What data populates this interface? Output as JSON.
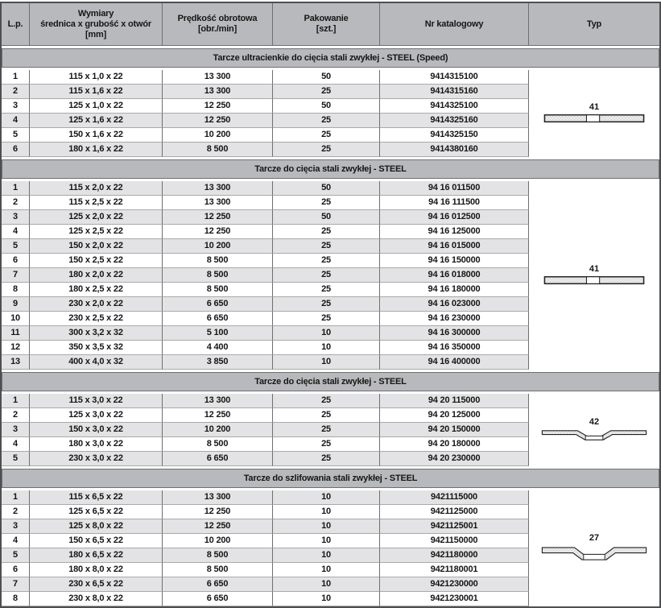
{
  "table": {
    "columns": [
      {
        "key": "lp",
        "lines": [
          "L.p."
        ]
      },
      {
        "key": "dim",
        "lines": [
          "Wymiary",
          "średnica x grubość x otwór",
          "[mm]"
        ]
      },
      {
        "key": "rpm",
        "lines": [
          "Prędkość obrotowa",
          "[obr./min]"
        ]
      },
      {
        "key": "pack",
        "lines": [
          "Pakowanie",
          "[szt.]"
        ]
      },
      {
        "key": "cat",
        "lines": [
          "Nr katalogowy"
        ]
      },
      {
        "key": "typ",
        "lines": [
          "Typ"
        ]
      }
    ],
    "sections": [
      {
        "title": "Tarcze ultracienkie do cięcia stali zwykłej - STEEL (Speed)",
        "type_label": "41",
        "disc": "flat41",
        "start_shaded": false,
        "rows": [
          {
            "lp": "1",
            "dim": "115 x 1,0 x 22",
            "rpm": "13 300",
            "pack": "50",
            "cat": "9414315100"
          },
          {
            "lp": "2",
            "dim": "115 x 1,6 x 22",
            "rpm": "13 300",
            "pack": "25",
            "cat": "9414315160"
          },
          {
            "lp": "3",
            "dim": "125 x 1,0 x 22",
            "rpm": "12 250",
            "pack": "50",
            "cat": "9414325100"
          },
          {
            "lp": "4",
            "dim": "125 x 1,6 x 22",
            "rpm": "12 250",
            "pack": "25",
            "cat": "9414325160"
          },
          {
            "lp": "5",
            "dim": "150 x 1,6 x 22",
            "rpm": "10 200",
            "pack": "25",
            "cat": "9414325150"
          },
          {
            "lp": "6",
            "dim": "180 x 1,6 x 22",
            "rpm": "8 500",
            "pack": "25",
            "cat": "9414380160"
          }
        ]
      },
      {
        "title": "Tarcze do cięcia stali zwykłej - STEEL",
        "type_label": "41",
        "disc": "flat41",
        "start_shaded": true,
        "rows": [
          {
            "lp": "1",
            "dim": "115 x 2,0 x 22",
            "rpm": "13 300",
            "pack": "50",
            "cat": "94 16 011500"
          },
          {
            "lp": "2",
            "dim": "115 x 2,5 x 22",
            "rpm": "13 300",
            "pack": "25",
            "cat": "94 16 111500"
          },
          {
            "lp": "3",
            "dim": "125 x 2,0 x 22",
            "rpm": "12 250",
            "pack": "50",
            "cat": "94 16 012500"
          },
          {
            "lp": "4",
            "dim": "125 x 2,5 x 22",
            "rpm": "12 250",
            "pack": "25",
            "cat": "94 16 125000"
          },
          {
            "lp": "5",
            "dim": "150 x 2,0 x 22",
            "rpm": "10 200",
            "pack": "25",
            "cat": "94 16 015000"
          },
          {
            "lp": "6",
            "dim": "150 x 2,5 x 22",
            "rpm": "8 500",
            "pack": "25",
            "cat": "94 16 150000"
          },
          {
            "lp": "7",
            "dim": "180 x 2,0 x 22",
            "rpm": "8 500",
            "pack": "25",
            "cat": "94 16 018000"
          },
          {
            "lp": "8",
            "dim": "180 x 2,5 x 22",
            "rpm": "8 500",
            "pack": "25",
            "cat": "94 16 180000"
          },
          {
            "lp": "9",
            "dim": "230 x 2,0 x 22",
            "rpm": "6 650",
            "pack": "25",
            "cat": "94 16 023000"
          },
          {
            "lp": "10",
            "dim": "230 x 2,5 x 22",
            "rpm": "6 650",
            "pack": "25",
            "cat": "94 16 230000"
          },
          {
            "lp": "11",
            "dim": "300 x 3,2 x 32",
            "rpm": "5 100",
            "pack": "10",
            "cat": "94 16 300000"
          },
          {
            "lp": "12",
            "dim": "350 x 3,5 x 32",
            "rpm": "4 400",
            "pack": "10",
            "cat": "94 16 350000"
          },
          {
            "lp": "13",
            "dim": "400 x 4,0 x 32",
            "rpm": "3 850",
            "pack": "10",
            "cat": "94 16 400000"
          }
        ]
      },
      {
        "title": "Tarcze do cięcia stali zwykłej  - STEEL",
        "type_label": "42",
        "disc": "dep42",
        "start_shaded": true,
        "rows": [
          {
            "lp": "1",
            "dim": "115 x 3,0 x 22",
            "rpm": "13 300",
            "pack": "25",
            "cat": "94 20 115000"
          },
          {
            "lp": "2",
            "dim": "125 x 3,0 x 22",
            "rpm": "12 250",
            "pack": "25",
            "cat": "94 20 125000"
          },
          {
            "lp": "3",
            "dim": "150 x 3,0 x 22",
            "rpm": "10 200",
            "pack": "25",
            "cat": "94 20 150000"
          },
          {
            "lp": "4",
            "dim": "180 x 3,0 x 22",
            "rpm": "8 500",
            "pack": "25",
            "cat": "94 20 180000"
          },
          {
            "lp": "5",
            "dim": "230 x 3,0 x 22",
            "rpm": "6 650",
            "pack": "25",
            "cat": "94 20 230000"
          }
        ]
      },
      {
        "title": "Tarcze do szlifowania stali zwykłej - STEEL",
        "type_label": "27",
        "disc": "dep27",
        "start_shaded": true,
        "rows": [
          {
            "lp": "1",
            "dim": "115 x 6,5 x 22",
            "rpm": "13 300",
            "pack": "10",
            "cat": "9421115000"
          },
          {
            "lp": "2",
            "dim": "125 x 6,5 x 22",
            "rpm": "12 250",
            "pack": "10",
            "cat": "9421125000"
          },
          {
            "lp": "3",
            "dim": "125 x 8,0 x 22",
            "rpm": "12 250",
            "pack": "10",
            "cat": "9421125001"
          },
          {
            "lp": "4",
            "dim": "150 x 6,5 x 22",
            "rpm": "10 200",
            "pack": "10",
            "cat": "9421150000"
          },
          {
            "lp": "5",
            "dim": "180 x 6,5 x 22",
            "rpm": "8 500",
            "pack": "10",
            "cat": "9421180000"
          },
          {
            "lp": "6",
            "dim": "180 x 8,0 x 22",
            "rpm": "8 500",
            "pack": "10",
            "cat": "9421180001"
          },
          {
            "lp": "7",
            "dim": "230 x 6,5 x 22",
            "rpm": "6 650",
            "pack": "10",
            "cat": "9421230000"
          },
          {
            "lp": "8",
            "dim": "230 x 8,0 x 22",
            "rpm": "6 650",
            "pack": "10",
            "cat": "9421230001"
          }
        ]
      }
    ],
    "colors": {
      "header_bg": "#b8b9bc",
      "shaded_row_bg": "#e3e3e5",
      "border_dark": "#4e4f51",
      "border_cell": "#6f6f6f"
    }
  }
}
